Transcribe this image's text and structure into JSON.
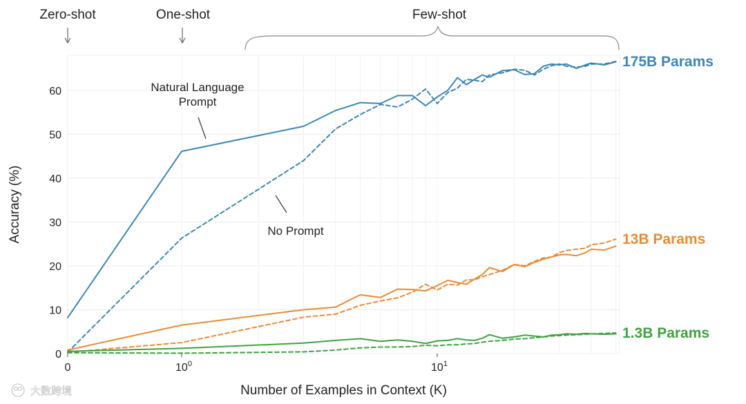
{
  "chart_data": {
    "type": "line",
    "xlabel": "Number of Examples in Context  (K)",
    "ylabel": "Accuracy (%)",
    "x_scale": "log-with-zero",
    "xlim": [
      0,
      50
    ],
    "ylim": [
      0,
      68
    ],
    "yticks": [
      0,
      10,
      20,
      30,
      40,
      50,
      60
    ],
    "xticks": [
      {
        "value": 0,
        "label": "0",
        "exp": ""
      },
      {
        "value": 1,
        "label": "10",
        "exp": "0"
      },
      {
        "value": 10,
        "label": "10",
        "exp": "1"
      }
    ],
    "grid": true,
    "regimes": [
      {
        "label": "Zero-shot",
        "marker": "arrow"
      },
      {
        "label": "One-shot",
        "marker": "arrow"
      },
      {
        "label": "Few-shot",
        "marker": "brace"
      }
    ],
    "annotations": [
      {
        "text": [
          "Natural Language",
          "Prompt"
        ],
        "points_to": "175B Params natural language prompt"
      },
      {
        "text": [
          "No Prompt"
        ],
        "points_to": "175B Params no prompt"
      }
    ],
    "series": [
      {
        "name": "175B Params",
        "color": "#3d86b0",
        "style": "solid",
        "x": [
          0,
          1,
          3,
          4,
          5,
          6,
          7,
          8,
          9,
          10,
          11,
          12,
          13,
          14,
          15,
          16,
          18,
          20,
          22,
          24,
          26,
          28,
          30,
          32,
          35,
          38,
          40,
          45,
          50
        ],
        "y": [
          8.2,
          46.1,
          51.8,
          55.4,
          57.2,
          57.0,
          58.8,
          58.8,
          56.5,
          58.5,
          60.0,
          62.9,
          61.3,
          62.5,
          63.5,
          63.0,
          64.5,
          64.7,
          63.6,
          63.8,
          65.5,
          66.0,
          65.8,
          66.0,
          65.0,
          65.8,
          66.2,
          65.8,
          66.5
        ]
      },
      {
        "name": "175B Params",
        "color": "#3d86b0",
        "style": "dashed",
        "x": [
          0,
          1,
          3,
          4,
          5,
          6,
          7,
          8,
          9,
          10,
          11,
          12,
          13,
          14,
          15,
          16,
          18,
          20,
          22,
          24,
          26,
          28,
          30,
          32,
          35,
          38,
          40,
          45,
          50
        ],
        "y": [
          0.3,
          26.3,
          44.0,
          51.2,
          54.5,
          56.8,
          56.2,
          58.0,
          60.3,
          57.0,
          59.5,
          60.5,
          62.5,
          62.3,
          62.0,
          63.5,
          64.0,
          64.8,
          64.6,
          63.5,
          64.8,
          65.6,
          66.0,
          65.5,
          65.3,
          65.5,
          66.0,
          66.0,
          66.6
        ]
      },
      {
        "name": "13B Params",
        "color": "#ea8a35",
        "style": "solid",
        "x": [
          0,
          1,
          3,
          4,
          5,
          6,
          7,
          8,
          9,
          10,
          11,
          12,
          13,
          14,
          15,
          16,
          18,
          20,
          22,
          24,
          26,
          28,
          30,
          32,
          35,
          38,
          40,
          45,
          50
        ],
        "y": [
          0.8,
          6.5,
          10.0,
          10.6,
          13.4,
          12.8,
          14.7,
          14.6,
          14.3,
          15.5,
          16.7,
          16.2,
          15.8,
          17.0,
          18.0,
          19.6,
          18.7,
          20.3,
          19.8,
          20.8,
          21.5,
          22.0,
          22.5,
          22.6,
          22.3,
          23.0,
          23.8,
          23.6,
          24.5
        ]
      },
      {
        "name": "13B Params",
        "color": "#ea8a35",
        "style": "dashed",
        "x": [
          0,
          1,
          3,
          4,
          5,
          6,
          7,
          8,
          9,
          10,
          11,
          12,
          13,
          14,
          15,
          16,
          18,
          20,
          22,
          24,
          26,
          28,
          30,
          32,
          35,
          38,
          40,
          45,
          50
        ],
        "y": [
          0.3,
          2.5,
          8.3,
          9.0,
          11.0,
          12.0,
          12.7,
          14.0,
          15.8,
          14.5,
          15.8,
          15.6,
          16.8,
          16.8,
          17.5,
          18.0,
          19.0,
          20.3,
          20.0,
          21.0,
          21.8,
          22.0,
          23.0,
          23.5,
          23.8,
          24.0,
          24.8,
          25.2,
          26.1
        ]
      },
      {
        "name": "1.3B Params",
        "color": "#3fa142",
        "style": "solid",
        "x": [
          0,
          1,
          3,
          4,
          5,
          6,
          7,
          8,
          9,
          10,
          11,
          12,
          13,
          14,
          15,
          16,
          18,
          20,
          22,
          24,
          26,
          28,
          30,
          32,
          35,
          38,
          40,
          45,
          50
        ],
        "y": [
          0.5,
          1.2,
          2.4,
          3.0,
          3.4,
          2.8,
          3.1,
          2.8,
          2.3,
          2.9,
          3.0,
          3.4,
          3.1,
          3.0,
          3.5,
          4.3,
          3.5,
          3.8,
          4.2,
          4.0,
          3.8,
          4.2,
          4.3,
          4.5,
          4.4,
          4.6,
          4.5,
          4.4,
          4.5
        ]
      },
      {
        "name": "1.3B Params",
        "color": "#3fa142",
        "style": "dashed",
        "x": [
          0,
          1,
          3,
          4,
          5,
          6,
          7,
          8,
          9,
          10,
          11,
          12,
          13,
          14,
          15,
          16,
          18,
          20,
          22,
          24,
          26,
          28,
          30,
          32,
          35,
          38,
          40,
          45,
          50
        ],
        "y": [
          0.2,
          0.1,
          0.4,
          0.8,
          1.3,
          1.5,
          1.5,
          1.6,
          1.9,
          1.8,
          2.0,
          2.0,
          2.2,
          2.3,
          2.6,
          2.8,
          3.0,
          3.3,
          3.4,
          3.6,
          3.8,
          4.0,
          4.1,
          4.2,
          4.3,
          4.4,
          4.5,
          4.6,
          4.7
        ]
      }
    ]
  },
  "watermark": "大数跨境"
}
